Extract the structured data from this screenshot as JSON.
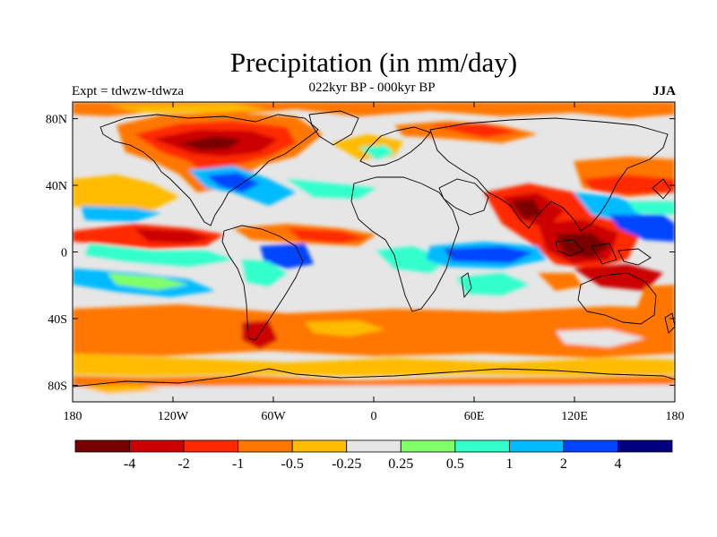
{
  "title": "Precipitation (in mm/day)",
  "subtitle_left": "Expt = tdwzw-tdwza",
  "subtitle_center": "022kyr BP - 000kyr BP",
  "subtitle_right": "JJA",
  "axes": {
    "lon_ticks": [
      {
        "value": -180,
        "label": "180"
      },
      {
        "value": -120,
        "label": "120W"
      },
      {
        "value": -60,
        "label": "60W"
      },
      {
        "value": 0,
        "label": "0"
      },
      {
        "value": 60,
        "label": "60E"
      },
      {
        "value": 120,
        "label": "120E"
      },
      {
        "value": 180,
        "label": "180"
      }
    ],
    "lat_ticks": [
      {
        "value": 80,
        "label": "80N"
      },
      {
        "value": 40,
        "label": "40N"
      },
      {
        "value": 0,
        "label": "0"
      },
      {
        "value": -40,
        "label": "40S"
      },
      {
        "value": -80,
        "label": "80S"
      }
    ],
    "lon_range": [
      -180,
      180
    ],
    "lat_range": [
      -90,
      90
    ]
  },
  "colorbar": {
    "colors": [
      "#7a0000",
      "#cc0000",
      "#ff2a00",
      "#ff7700",
      "#ffbb00",
      "#e6e6e6",
      "#80ff66",
      "#33ffcc",
      "#00bbff",
      "#0044ff",
      "#000080"
    ],
    "labels": [
      "-4",
      "-2",
      "-1",
      "-0.5",
      "-0.25",
      "0.25",
      "0.5",
      "1",
      "2",
      "4"
    ]
  }
}
